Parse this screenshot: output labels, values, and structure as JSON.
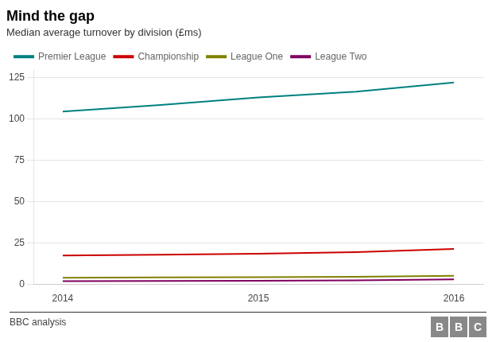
{
  "chart_data": {
    "type": "line",
    "title": "Mind the gap",
    "subtitle": "Median average turnover by division (£ms)",
    "footer": "BBC analysis",
    "logo": "BBC",
    "x": [
      2014,
      2014.5,
      2015,
      2015.5,
      2016
    ],
    "series": [
      {
        "name": "Premier League",
        "color": "#008080",
        "values": [
          104.5,
          108.5,
          113.0,
          116.5,
          122.0
        ]
      },
      {
        "name": "Championship",
        "color": "#cc0000",
        "values": [
          17.5,
          18.0,
          18.5,
          19.5,
          21.5
        ]
      },
      {
        "name": "League One",
        "color": "#808000",
        "values": [
          4.0,
          4.2,
          4.4,
          4.6,
          5.2
        ]
      },
      {
        "name": "League Two",
        "color": "#800060",
        "values": [
          2.0,
          2.1,
          2.2,
          2.4,
          3.0
        ]
      }
    ],
    "xlim": [
      2013.85,
      2016.15
    ],
    "xticks": [
      2014,
      2015,
      2016
    ],
    "ylim": [
      0,
      130
    ],
    "yticks": [
      0,
      25,
      50,
      75,
      100,
      125
    ],
    "grid": "y",
    "legend": "top"
  }
}
